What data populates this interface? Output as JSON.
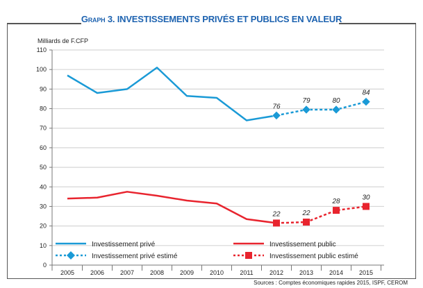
{
  "chart_data": {
    "type": "line",
    "title_prefix": "Graph",
    "title": "3. INVESTISSEMENTS PRIVÉS ET PUBLICS EN VALEUR",
    "ylabel": "Milliards de F.CFP",
    "xlabel": "",
    "ylim": [
      0,
      110
    ],
    "yticks": [
      0,
      10,
      20,
      30,
      40,
      50,
      60,
      70,
      80,
      90,
      100,
      110
    ],
    "x": [
      "2005",
      "2006",
      "2007",
      "2008",
      "2009",
      "2010",
      "2011",
      "2012",
      "2013",
      "2014",
      "2015"
    ],
    "grid": true,
    "legend_placement": "bottom",
    "series": [
      {
        "name": "Investissement privé",
        "color": "#1a9ad6",
        "style": "solid",
        "values": [
          97,
          88,
          90,
          101,
          86.5,
          85.5,
          74,
          76.5,
          null,
          null,
          null
        ]
      },
      {
        "name": "Investissement privé estimé",
        "color": "#1a9ad6",
        "style": "dotted",
        "marker": "diamond",
        "values": [
          null,
          null,
          null,
          null,
          null,
          null,
          null,
          76.5,
          79.5,
          79.5,
          83.5
        ],
        "labels": [
          null,
          null,
          null,
          null,
          null,
          null,
          null,
          "76",
          "79",
          "80",
          "84"
        ]
      },
      {
        "name": "Investissement public",
        "color": "#e8242e",
        "style": "solid",
        "values": [
          34,
          34.5,
          37.5,
          35.5,
          33,
          31.5,
          23.5,
          21.5,
          null,
          null,
          null
        ]
      },
      {
        "name": "Investissement public estimé",
        "color": "#e8242e",
        "style": "dotted",
        "marker": "square",
        "values": [
          null,
          null,
          null,
          null,
          null,
          null,
          null,
          21.5,
          22,
          28,
          30
        ],
        "labels": [
          null,
          null,
          null,
          null,
          null,
          null,
          null,
          "22",
          "22",
          "28",
          "30"
        ]
      }
    ],
    "source": "Sources : Comptes économiques rapides 2015, ISPF, CEROM"
  }
}
